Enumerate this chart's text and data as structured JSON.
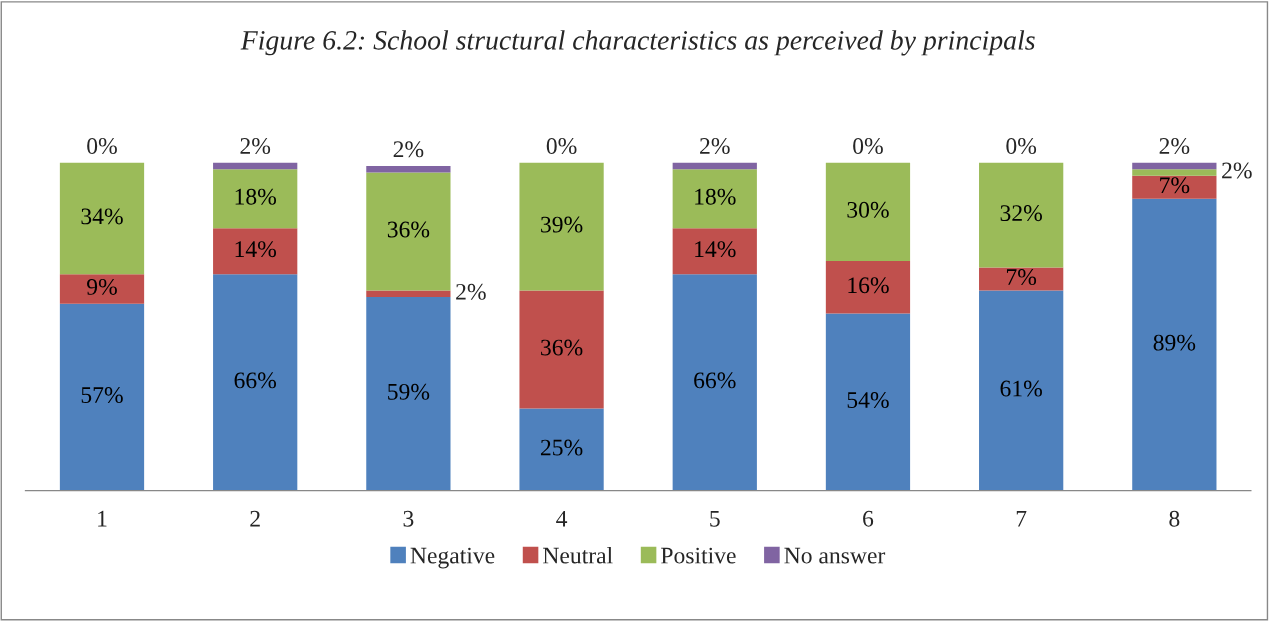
{
  "chart_data": {
    "type": "bar",
    "title": "Figure 6.2: School structural characteristics as perceived by principals",
    "categories": [
      "1",
      "2",
      "3",
      "4",
      "5",
      "6",
      "7",
      "8"
    ],
    "stacked": true,
    "legend": "bottom",
    "grid": false,
    "tick_labels": "x",
    "series": [
      {
        "name": "Negative",
        "color": "#4f81bd",
        "values": [
          57,
          66,
          59,
          25,
          66,
          54,
          61,
          89
        ],
        "value_labels": [
          "57%",
          "66%",
          "59%",
          "25%",
          "66%",
          "54%",
          "61%",
          "89%"
        ]
      },
      {
        "name": "Neutral",
        "color": "#c0504d",
        "values": [
          9,
          14,
          2,
          36,
          14,
          16,
          7,
          7
        ],
        "value_labels": [
          "9%",
          "14%",
          "2%",
          "36%",
          "14%",
          "16%",
          "7%",
          "7%"
        ]
      },
      {
        "name": "Positive",
        "color": "#9bbb59",
        "values": [
          34,
          18,
          36,
          39,
          18,
          30,
          32,
          2
        ],
        "value_labels": [
          "34%",
          "18%",
          "36%",
          "39%",
          "18%",
          "30%",
          "32%",
          "2%"
        ]
      },
      {
        "name": "No answer",
        "color": "#8064a2",
        "values": [
          0,
          2,
          2,
          0,
          2,
          0,
          0,
          2
        ],
        "value_labels": [
          "0%",
          "2%",
          "2%",
          "0%",
          "2%",
          "0%",
          "0%",
          "2%"
        ]
      }
    ]
  }
}
